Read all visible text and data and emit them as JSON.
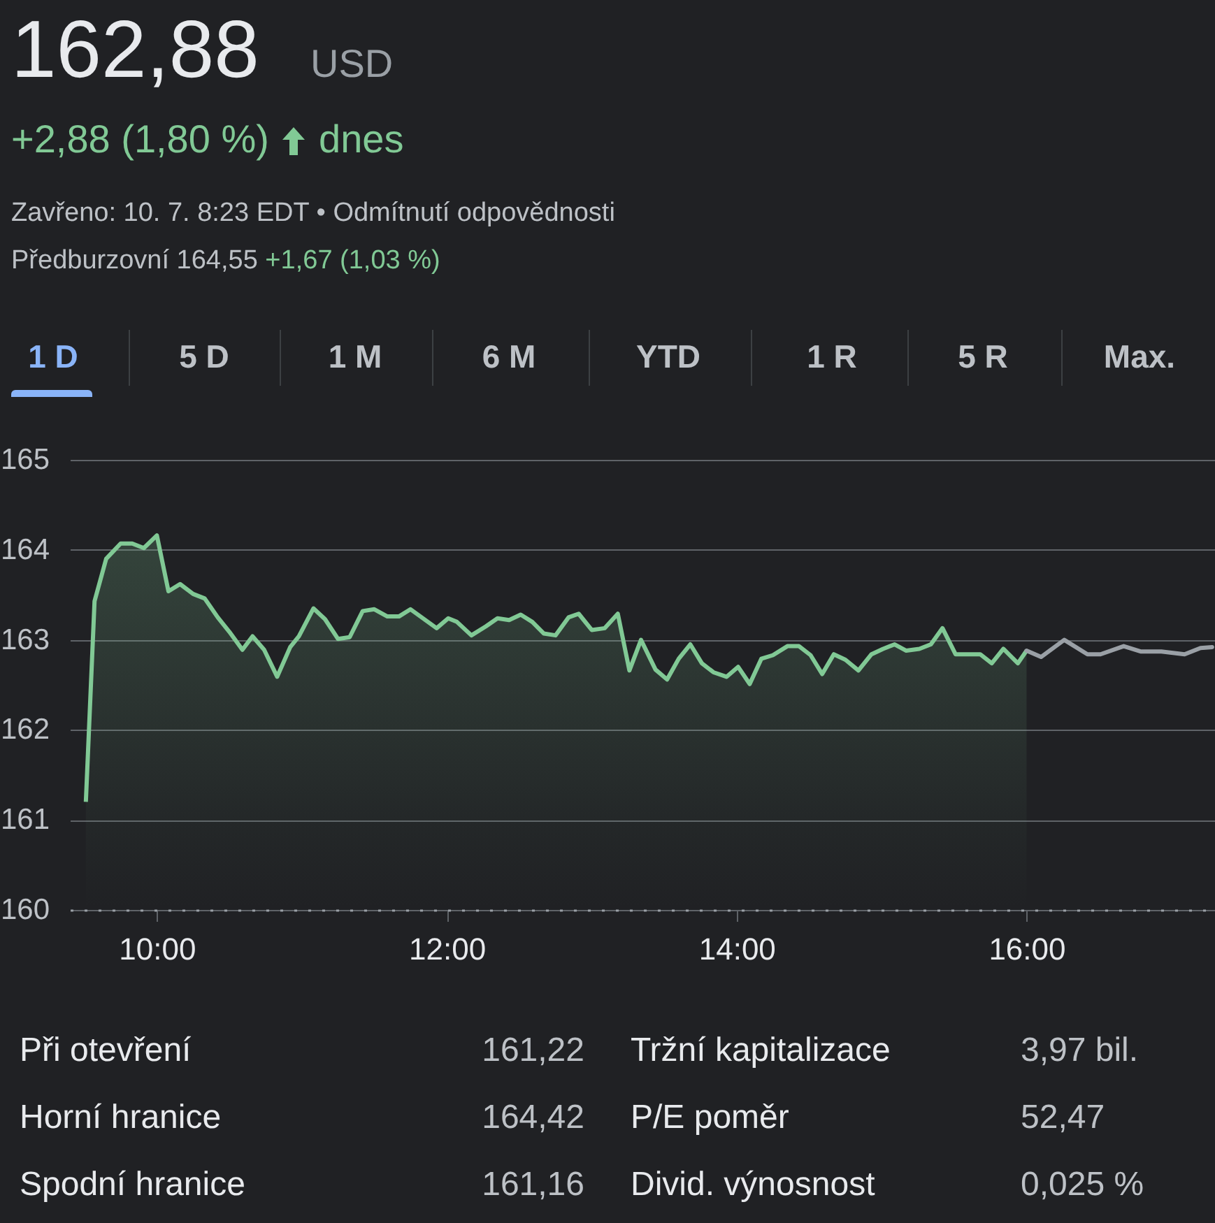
{
  "chart_data": {
    "type": "line",
    "title": "162,88",
    "subtitle": "USD",
    "annotations": [
      "+2,88 (1,80 %)",
      "dnes",
      "Zavřeno: 10. 7. 8:23 EDT • Odmítnutí odpovědnosti",
      "Předburzovní 164,55",
      "+1,67 (1,03 %)",
      "1 D",
      "5 D",
      "1 M",
      "6 M",
      "YTD",
      "1 R",
      "5 R",
      "Max.",
      "Při otevření",
      "161,22",
      "Tržní kapitalizace",
      "3,97 bil.",
      "Horní hranice",
      "164,42",
      "P/E poměr",
      "52,47",
      "Spodní hranice",
      "161,16",
      "Divid. výnosnost",
      "0,025 %"
    ],
    "xlim": [
      9.4,
      17.3
    ],
    "xticks": [
      {
        "value": 10,
        "label": "10:00"
      },
      {
        "value": 12,
        "label": "12:00"
      },
      {
        "value": 14,
        "label": "14:00"
      },
      {
        "value": 16,
        "label": "16:00"
      }
    ],
    "ylim": [
      160,
      165
    ],
    "yticks": [
      160,
      161,
      162,
      163,
      164,
      165
    ],
    "grid": "y",
    "series": [
      {
        "type": "area",
        "color": "#81c995",
        "x": [
          9.51,
          9.57,
          9.65,
          9.75,
          9.83,
          9.91,
          10.0,
          10.08,
          10.16,
          10.25,
          10.33,
          10.42,
          10.5,
          10.59,
          10.66,
          10.74,
          10.83,
          10.92,
          10.98,
          11.08,
          11.16,
          11.25,
          11.33,
          11.42,
          11.5,
          11.59,
          11.67,
          11.75,
          11.93,
          12.01,
          12.07,
          12.17,
          12.27,
          12.35,
          12.43,
          12.51,
          12.59,
          12.67,
          12.75,
          12.84,
          12.91,
          13.0,
          13.09,
          13.18,
          13.26,
          13.34,
          13.44,
          13.52,
          13.6,
          13.68,
          13.76,
          13.84,
          13.93,
          14.01,
          14.09,
          14.17,
          14.25,
          14.35,
          14.43,
          14.51,
          14.59,
          14.67,
          14.75,
          14.84,
          14.93,
          15.01,
          15.09,
          15.17,
          15.26,
          15.34,
          15.42,
          15.51,
          15.6,
          15.68,
          15.76,
          15.84,
          15.94,
          16.0
        ],
        "values": [
          161.2,
          163.43,
          163.9,
          164.07,
          164.07,
          164.02,
          164.16,
          163.54,
          163.62,
          163.51,
          163.46,
          163.25,
          163.09,
          162.89,
          163.04,
          162.89,
          162.59,
          162.92,
          163.04,
          163.35,
          163.23,
          163.01,
          163.03,
          163.32,
          163.34,
          163.26,
          163.26,
          163.34,
          163.13,
          163.24,
          163.2,
          163.05,
          163.15,
          163.24,
          163.22,
          163.28,
          163.2,
          163.07,
          163.05,
          163.25,
          163.29,
          163.11,
          163.13,
          163.29,
          162.66,
          163.0,
          162.67,
          162.56,
          162.79,
          162.95,
          162.74,
          162.64,
          162.59,
          162.7,
          162.51,
          162.79,
          162.83,
          162.93,
          162.93,
          162.83,
          162.62,
          162.84,
          162.78,
          162.66,
          162.84,
          162.9,
          162.95,
          162.88,
          162.9,
          162.95,
          163.13,
          162.84,
          162.84,
          162.84,
          162.74,
          162.9,
          162.74,
          162.88
        ]
      },
      {
        "color": "#9aa0a6",
        "x": [
          16.0,
          16.1,
          16.26,
          16.42,
          16.51,
          16.67,
          16.79,
          16.93,
          17.09,
          17.2,
          17.28
        ],
        "values": [
          162.88,
          162.81,
          163.0,
          162.84,
          162.84,
          162.93,
          162.87,
          162.87,
          162.84,
          162.91,
          162.92
        ]
      }
    ]
  }
}
